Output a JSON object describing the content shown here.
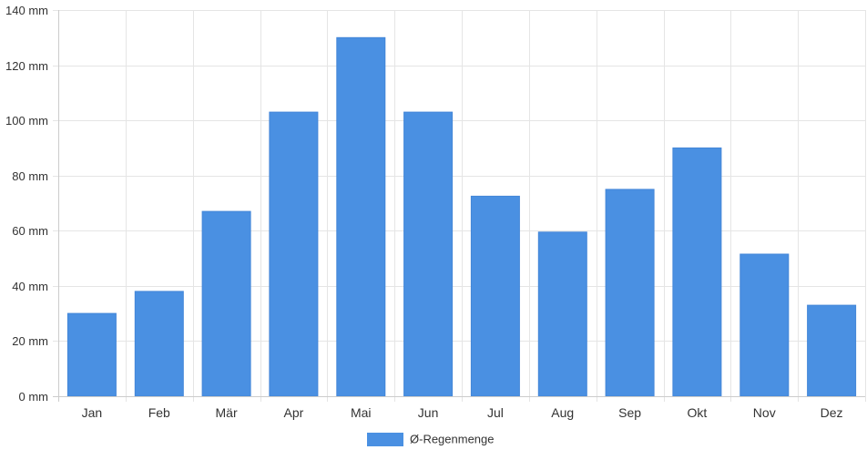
{
  "chart_data": {
    "type": "bar",
    "title": "",
    "xlabel": "",
    "ylabel": "",
    "categories": [
      "Jan",
      "Feb",
      "Mär",
      "Apr",
      "Mai",
      "Jun",
      "Jul",
      "Aug",
      "Sep",
      "Okt",
      "Nov",
      "Dez"
    ],
    "series": [
      {
        "name": "Ø-Regenmenge",
        "values": [
          30,
          38,
          67,
          103,
          130,
          103,
          72.5,
          59.5,
          75,
          90,
          51.5,
          33
        ],
        "color": "#4a90e2"
      }
    ],
    "ylim": [
      0,
      140
    ],
    "yticks": [
      0,
      20,
      40,
      60,
      80,
      100,
      120,
      140
    ],
    "ytick_labels": [
      "0 mm",
      "20 mm",
      "40 mm",
      "60 mm",
      "80 mm",
      "100 mm",
      "120 mm",
      "140 mm"
    ],
    "grid": true,
    "legend": "bottom-center",
    "grid_color": "#e5e5e5",
    "axis_color": "#cccccc"
  }
}
